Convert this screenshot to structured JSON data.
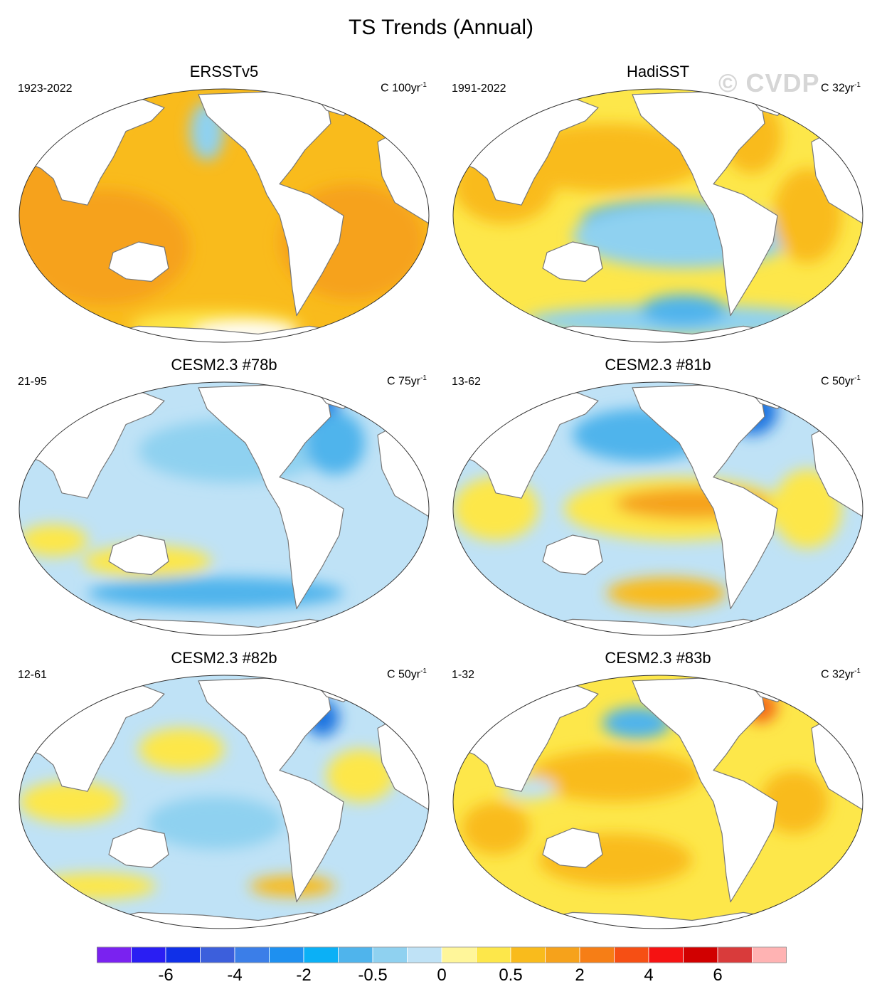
{
  "title": "TS Trends (Annual)",
  "watermark": "© CVDP",
  "panels": [
    {
      "name": "ERSSTv5",
      "period": "1923-2022",
      "units_prefix": "C ",
      "units_value": "100yr",
      "units_exp": "-1",
      "base": "#f9bb1c",
      "blobs": [
        [
          "#f6a21b",
          0.22,
          0.62,
          0.2,
          0.22
        ],
        [
          "#f6a21b",
          0.8,
          0.6,
          0.17,
          0.22
        ],
        [
          "#f6a21b",
          0.05,
          0.45,
          0.12,
          0.2
        ],
        [
          "#fde74a",
          0.48,
          0.92,
          0.2,
          0.06
        ],
        [
          "#fde74a",
          0.14,
          0.13,
          0.12,
          0.07
        ],
        [
          "#8fd1f0",
          0.46,
          0.18,
          0.04,
          0.11
        ],
        [
          "#ffffff",
          0.55,
          0.95,
          0.12,
          0.04
        ]
      ]
    },
    {
      "name": "HadiSST",
      "period": "1991-2022",
      "units_prefix": "C ",
      "units_value": "32yr",
      "units_exp": "-1",
      "base": "#fde74a",
      "blobs": [
        [
          "#f9bb1c",
          0.38,
          0.28,
          0.24,
          0.13
        ],
        [
          "#4fb4ec",
          0.52,
          0.52,
          0.2,
          0.08
        ],
        [
          "#8fd1f0",
          0.56,
          0.58,
          0.26,
          0.12
        ],
        [
          "#8fd1f0",
          0.55,
          0.9,
          0.36,
          0.06
        ],
        [
          "#f9bb1c",
          0.72,
          0.2,
          0.07,
          0.14
        ],
        [
          "#f9bb1c",
          0.85,
          0.5,
          0.08,
          0.18
        ],
        [
          "#4fb4ec",
          0.56,
          0.86,
          0.1,
          0.06
        ],
        [
          "#f9bb1c",
          0.14,
          0.38,
          0.12,
          0.15
        ]
      ]
    },
    {
      "name": "CESM2.3 #78b",
      "period": "21-95",
      "units_prefix": "C ",
      "units_value": "75yr",
      "units_exp": "-1",
      "base": "#bfe2f6",
      "blobs": [
        [
          "#8fd1f0",
          0.52,
          0.28,
          0.22,
          0.12
        ],
        [
          "#4fb4ec",
          0.48,
          0.82,
          0.3,
          0.06
        ],
        [
          "#1e74e0",
          0.72,
          0.12,
          0.05,
          0.08
        ],
        [
          "#4fb4ec",
          0.76,
          0.25,
          0.07,
          0.12
        ],
        [
          "#fde74a",
          0.32,
          0.7,
          0.15,
          0.06
        ],
        [
          "#fde74a",
          0.1,
          0.62,
          0.08,
          0.06
        ]
      ]
    },
    {
      "name": "CESM2.3 #81b",
      "period": "13-62",
      "units_prefix": "C ",
      "units_value": "50yr",
      "units_exp": "-1",
      "base": "#bfe2f6",
      "blobs": [
        [
          "#fde74a",
          0.54,
          0.5,
          0.26,
          0.12
        ],
        [
          "#f6a21b",
          0.58,
          0.48,
          0.18,
          0.06
        ],
        [
          "#4fb4ec",
          0.46,
          0.22,
          0.16,
          0.1
        ],
        [
          "#1e74e0",
          0.72,
          0.13,
          0.06,
          0.09
        ],
        [
          "#f9bb1c",
          0.52,
          0.82,
          0.14,
          0.06
        ],
        [
          "#fde74a",
          0.12,
          0.5,
          0.1,
          0.12
        ],
        [
          "#fde74a",
          0.85,
          0.5,
          0.08,
          0.15
        ]
      ]
    },
    {
      "name": "CESM2.3 #82b",
      "period": "12-61",
      "units_prefix": "C ",
      "units_value": "50yr",
      "units_exp": "-1",
      "base": "#bfe2f6",
      "blobs": [
        [
          "#fde74a",
          0.4,
          0.3,
          0.1,
          0.08
        ],
        [
          "#fde74a",
          0.82,
          0.4,
          0.08,
          0.1
        ],
        [
          "#fde74a",
          0.14,
          0.5,
          0.12,
          0.08
        ],
        [
          "#fde74a",
          0.2,
          0.82,
          0.14,
          0.05
        ],
        [
          "#f9bb1c",
          0.66,
          0.82,
          0.1,
          0.04
        ],
        [
          "#1e74e0",
          0.73,
          0.18,
          0.04,
          0.07
        ],
        [
          "#8fd1f0",
          0.48,
          0.58,
          0.16,
          0.1
        ]
      ]
    },
    {
      "name": "CESM2.3 #83b",
      "period": "1-32",
      "units_prefix": "C ",
      "units_value": "32yr",
      "units_exp": "-1",
      "base": "#fde74a",
      "blobs": [
        [
          "#f9bb1c",
          0.4,
          0.4,
          0.2,
          0.1
        ],
        [
          "#f9bb1c",
          0.4,
          0.72,
          0.18,
          0.1
        ],
        [
          "#4fb4ec",
          0.45,
          0.2,
          0.08,
          0.06
        ],
        [
          "#f46a13",
          0.74,
          0.14,
          0.04,
          0.06
        ],
        [
          "#f9bb1c",
          0.82,
          0.5,
          0.08,
          0.12
        ],
        [
          "#f9bb1c",
          0.12,
          0.6,
          0.08,
          0.1
        ],
        [
          "#bfe2f6",
          0.2,
          0.45,
          0.06,
          0.04
        ]
      ]
    }
  ],
  "colorbar": {
    "colors": [
      "#7a22f0",
      "#2a1ef3",
      "#1030e8",
      "#3c5fdc",
      "#3b7ee8",
      "#1e90f0",
      "#0bb0f6",
      "#4fb4ec",
      "#8fd1f0",
      "#bfe2f6",
      "#fff69a",
      "#fde74a",
      "#f9bb1c",
      "#f6a21b",
      "#f67e16",
      "#f64f14",
      "#f51212",
      "#d10000",
      "#d93b3b",
      "#ffb3b3"
    ],
    "labels": [
      "-6",
      "-4",
      "-2",
      "-0.5",
      "0",
      "0.5",
      "2",
      "4",
      "6"
    ]
  }
}
